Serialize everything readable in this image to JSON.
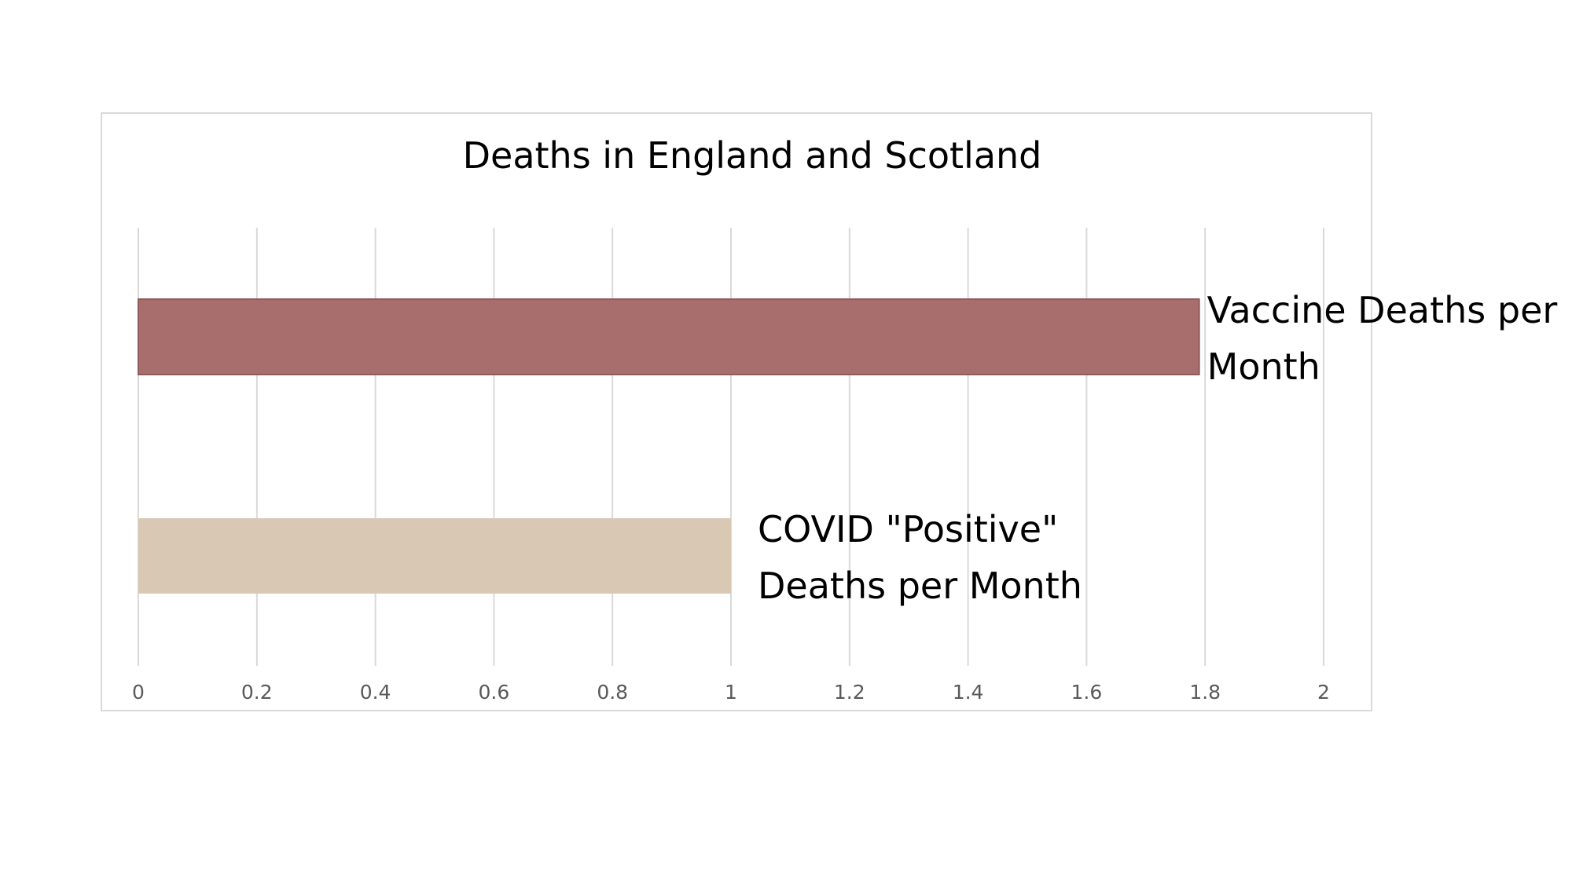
{
  "chart_data": {
    "type": "bar",
    "orientation": "horizontal",
    "title": "Deaths in England and Scotland",
    "xlabel": "",
    "ylabel": "",
    "xlim": [
      0,
      2
    ],
    "ticks": [
      "0",
      "0.2",
      "0.4",
      "0.6",
      "0.8",
      "1",
      "1.2",
      "1.4",
      "1.6",
      "1.8",
      "2"
    ],
    "grid": true,
    "legend": "none",
    "categories": [
      "Vaccine Deaths per Month",
      "COVID \"Positive\" Deaths per Month"
    ],
    "bars": [
      {
        "value": 1.79,
        "label_lines": [
          "Vaccine Deaths per",
          "Month"
        ],
        "color": "#a86e6e"
      },
      {
        "value": 1.0,
        "label_lines": [
          "COVID \"Positive\"",
          "Deaths per Month"
        ],
        "color": "#d9c8b4"
      }
    ]
  }
}
